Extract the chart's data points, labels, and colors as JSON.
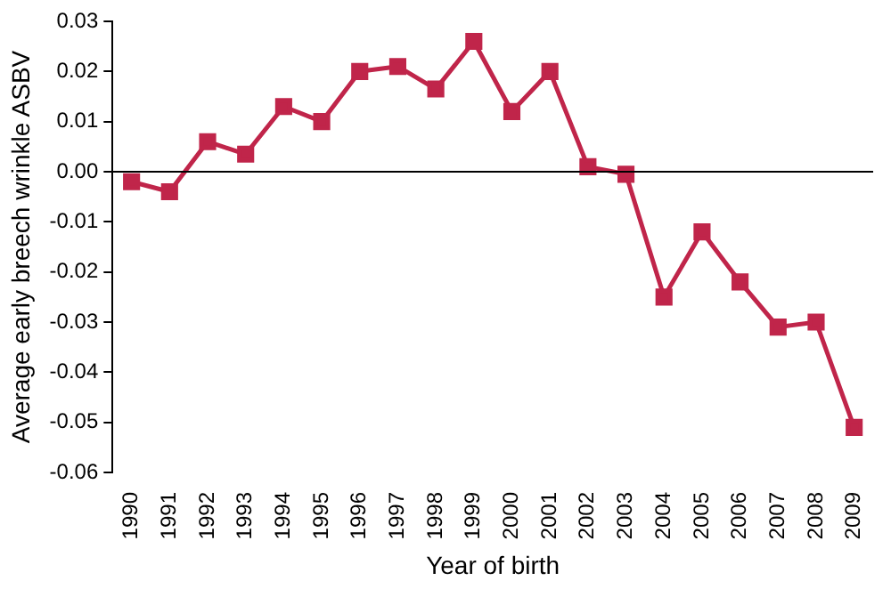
{
  "chart_data": {
    "type": "line",
    "xlabel": "Year of birth",
    "ylabel": "Average early breech wrinkle ASBV",
    "categories": [
      "1990",
      "1991",
      "1992",
      "1993",
      "1994",
      "1995",
      "1996",
      "1997",
      "1998",
      "1999",
      "2000",
      "2001",
      "2002",
      "2003",
      "2004",
      "2005",
      "2006",
      "2007",
      "2008",
      "2009"
    ],
    "series": [
      {
        "color": "#c0254a",
        "values": [
          -0.002,
          -0.004,
          0.006,
          0.0035,
          0.013,
          0.01,
          0.02,
          0.021,
          0.0165,
          0.026,
          0.012,
          0.02,
          0.001,
          -0.0005,
          -0.025,
          -0.012,
          -0.022,
          -0.031,
          -0.03,
          -0.051
        ]
      }
    ],
    "ylim": [
      -0.06,
      0.03
    ],
    "yticks": [
      0.03,
      0.02,
      0.01,
      {
        "value": 0,
        "label": "0.00"
      },
      -0.01,
      -0.02,
      -0.03,
      -0.04,
      -0.05,
      -0.06
    ],
    "ref_lines": [
      {
        "axis": "y",
        "value": 0,
        "color": "#000000"
      }
    ],
    "marker": "square",
    "line_style": "solid",
    "grid": false,
    "legend": false
  }
}
